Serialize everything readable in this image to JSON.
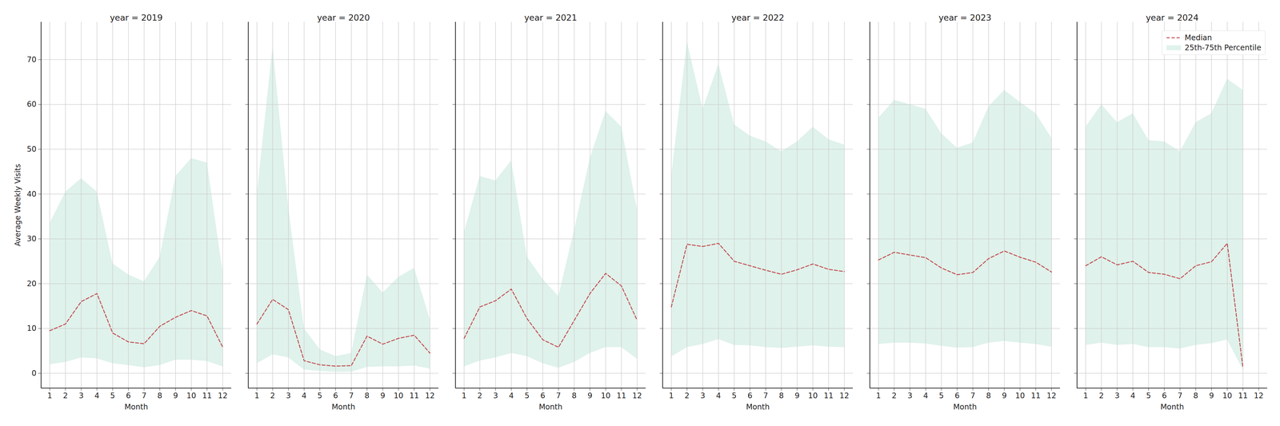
{
  "chart_data": [
    {
      "type": "line",
      "title": "year = 2019",
      "xlabel": "Month",
      "ylabel": "Average Weekly Visits",
      "x": [
        1,
        2,
        3,
        4,
        5,
        6,
        7,
        8,
        9,
        10,
        11,
        12
      ],
      "series": [
        {
          "name": "Median",
          "type": "line",
          "color": "#c44e52",
          "line_style": "dashed",
          "values": [
            9.5,
            11,
            16,
            17.8,
            9,
            7,
            6.6,
            10.5,
            12.5,
            14,
            12.8,
            5.8
          ]
        },
        {
          "name": "25th-75th Percentile",
          "type": "area",
          "color": "#dff2eb",
          "low": [
            2,
            2.5,
            3.5,
            3.3,
            2.2,
            1.8,
            1.3,
            1.8,
            3,
            3,
            2.7,
            1.5
          ],
          "high": [
            33.5,
            40.5,
            43.5,
            40.5,
            24.5,
            22,
            20.5,
            26,
            44,
            48,
            47,
            22.5
          ]
        }
      ],
      "xlim": [
        0.45,
        12.55
      ],
      "ylim": [
        -3.3,
        78.4
      ],
      "xticks": [
        1,
        2,
        3,
        4,
        5,
        6,
        7,
        8,
        9,
        10,
        11,
        12
      ],
      "yticks": [
        0,
        10,
        20,
        30,
        40,
        50,
        60,
        70
      ],
      "grid": true
    },
    {
      "type": "line",
      "title": "year = 2020",
      "xlabel": "Month",
      "x": [
        1,
        2,
        3,
        4,
        5,
        6,
        7,
        8,
        9,
        10,
        11,
        12
      ],
      "series": [
        {
          "name": "Median",
          "type": "line",
          "color": "#c44e52",
          "line_style": "dashed",
          "values": [
            11,
            16.5,
            14.2,
            2.8,
            1.9,
            1.6,
            1.7,
            8.3,
            6.5,
            7.8,
            8.5,
            4.5
          ]
        },
        {
          "name": "25th-75th Percentile",
          "type": "area",
          "color": "#dff2eb",
          "low": [
            2.2,
            4.2,
            3.5,
            0.8,
            0.5,
            0.3,
            0.3,
            1.4,
            1.5,
            1.5,
            1.7,
            1
          ],
          "high": [
            40,
            73,
            37,
            10,
            5.3,
            3.8,
            4.5,
            22,
            18,
            21.5,
            23.5,
            12
          ]
        }
      ],
      "xlim": [
        0.45,
        12.55
      ],
      "ylim": [
        -3.3,
        78.4
      ],
      "xticks": [
        1,
        2,
        3,
        4,
        5,
        6,
        7,
        8,
        9,
        10,
        11,
        12
      ],
      "yticks": [
        0,
        10,
        20,
        30,
        40,
        50,
        60,
        70
      ],
      "grid": true,
      "tick_labels": "x"
    },
    {
      "type": "line",
      "title": "year = 2021",
      "xlabel": "Month",
      "x": [
        1,
        2,
        3,
        4,
        5,
        6,
        7,
        8,
        9,
        10,
        11,
        12
      ],
      "series": [
        {
          "name": "Median",
          "type": "line",
          "color": "#c44e52",
          "line_style": "dashed",
          "values": [
            7.8,
            14.8,
            16.2,
            18.8,
            12.2,
            7.5,
            5.8,
            11.8,
            17.8,
            22.3,
            19.5,
            11.8
          ]
        },
        {
          "name": "25th-75th Percentile",
          "type": "area",
          "color": "#dff2eb",
          "low": [
            1.5,
            2.8,
            3.5,
            4.5,
            3.8,
            2.2,
            1.2,
            2.5,
            4.5,
            5.8,
            5.8,
            3.2
          ],
          "high": [
            31.5,
            44,
            43,
            47.5,
            26,
            21,
            17.2,
            32,
            48,
            58.5,
            55,
            36.5
          ]
        }
      ],
      "xlim": [
        0.45,
        12.55
      ],
      "ylim": [
        -3.3,
        78.4
      ],
      "xticks": [
        1,
        2,
        3,
        4,
        5,
        6,
        7,
        8,
        9,
        10,
        11,
        12
      ],
      "yticks": [
        0,
        10,
        20,
        30,
        40,
        50,
        60,
        70
      ],
      "grid": true,
      "tick_labels": "x"
    },
    {
      "type": "line",
      "title": "year = 2022",
      "xlabel": "Month",
      "x": [
        1,
        2,
        3,
        4,
        5,
        6,
        7,
        8,
        9,
        10,
        11,
        12
      ],
      "series": [
        {
          "name": "Median",
          "type": "line",
          "color": "#c44e52",
          "line_style": "dashed",
          "values": [
            14.8,
            28.8,
            28.3,
            29,
            25,
            24,
            23,
            22.1,
            23.1,
            24.4,
            23.2,
            22.7
          ]
        },
        {
          "name": "25th-75th Percentile",
          "type": "area",
          "color": "#dff2eb",
          "low": [
            3.7,
            5.8,
            6.5,
            7.6,
            6.3,
            6.2,
            5.8,
            5.6,
            5.9,
            6.2,
            5.9,
            5.8
          ],
          "high": [
            44,
            74,
            59,
            69,
            55.5,
            53,
            51.7,
            49.5,
            51.7,
            55,
            52.2,
            51
          ]
        }
      ],
      "xlim": [
        0.45,
        12.55
      ],
      "ylim": [
        -3.3,
        78.4
      ],
      "xticks": [
        1,
        2,
        3,
        4,
        5,
        6,
        7,
        8,
        9,
        10,
        11,
        12
      ],
      "yticks": [
        0,
        10,
        20,
        30,
        40,
        50,
        60,
        70
      ],
      "grid": true,
      "tick_labels": "x"
    },
    {
      "type": "line",
      "title": "year = 2023",
      "xlabel": "Month",
      "x": [
        1,
        2,
        3,
        4,
        5,
        6,
        7,
        8,
        9,
        10,
        11,
        12
      ],
      "series": [
        {
          "name": "Median",
          "type": "line",
          "color": "#c44e52",
          "line_style": "dashed",
          "values": [
            25.3,
            27,
            26.4,
            25.8,
            23.5,
            22,
            22.5,
            25.6,
            27.3,
            25.9,
            24.8,
            22.6
          ]
        },
        {
          "name": "25th-75th Percentile",
          "type": "area",
          "color": "#dff2eb",
          "low": [
            6.5,
            6.8,
            6.8,
            6.6,
            6.1,
            5.7,
            5.8,
            6.8,
            7.2,
            6.8,
            6.5,
            5.9
          ],
          "high": [
            57,
            61,
            60,
            59,
            53.5,
            50.3,
            51.5,
            59.5,
            63.2,
            60.5,
            58,
            52.5
          ]
        }
      ],
      "xlim": [
        0.45,
        12.55
      ],
      "ylim": [
        -3.3,
        78.4
      ],
      "xticks": [
        1,
        2,
        3,
        4,
        5,
        6,
        7,
        8,
        9,
        10,
        11,
        12
      ],
      "yticks": [
        0,
        10,
        20,
        30,
        40,
        50,
        60,
        70
      ],
      "grid": true,
      "tick_labels": "x"
    },
    {
      "type": "line",
      "title": "year = 2024",
      "xlabel": "Month",
      "x": [
        1,
        2,
        3,
        4,
        5,
        6,
        7,
        8,
        9,
        10,
        11
      ],
      "series": [
        {
          "name": "Median",
          "type": "line",
          "color": "#c44e52",
          "line_style": "dashed",
          "values": [
            24,
            26,
            24.2,
            25,
            22.5,
            22.1,
            21.1,
            24,
            24.9,
            29,
            1.2
          ]
        },
        {
          "name": "25th-75th Percentile",
          "type": "area",
          "color": "#dff2eb",
          "low": [
            6.3,
            6.8,
            6.3,
            6.5,
            5.8,
            5.8,
            5.5,
            6.3,
            6.7,
            7.5,
            0.8
          ],
          "high": [
            55,
            60,
            56,
            58,
            52,
            51.7,
            49.5,
            56,
            58,
            65.7,
            63.2
          ]
        }
      ],
      "xlim": [
        0.45,
        12.55
      ],
      "ylim": [
        -3.3,
        78.4
      ],
      "xticks": [
        1,
        2,
        3,
        4,
        5,
        6,
        7,
        8,
        9,
        10,
        11,
        12
      ],
      "yticks": [
        0,
        10,
        20,
        30,
        40,
        50,
        60,
        70
      ],
      "grid": true,
      "tick_labels": "x",
      "legend": "upper right"
    }
  ]
}
